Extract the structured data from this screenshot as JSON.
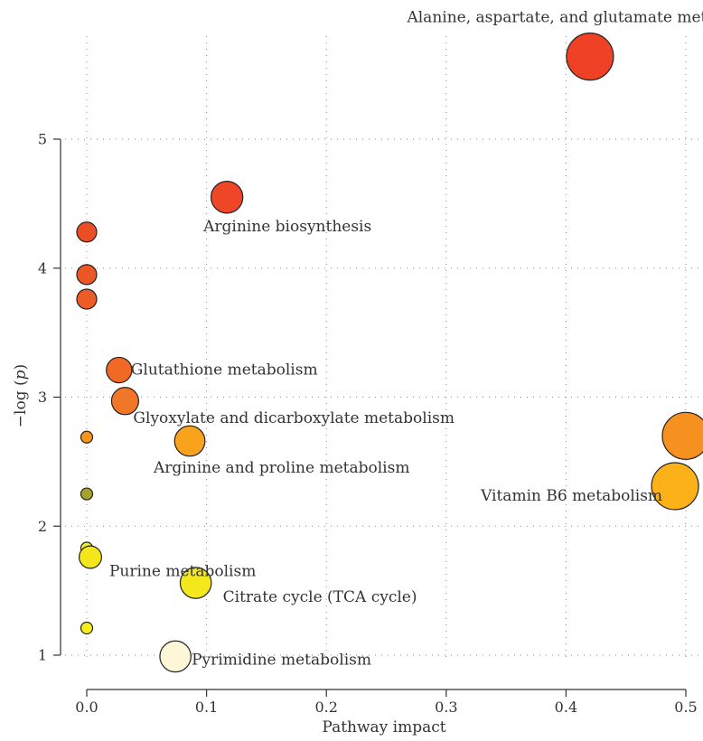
{
  "chart_data": {
    "type": "scatter",
    "xlabel": "Pathway impact",
    "ylabel_prefix": "−log (",
    "ylabel_var": "p",
    "ylabel_suffix": ")",
    "xlim": [
      -0.005,
      0.505
    ],
    "ylim": [
      0.82,
      5.78
    ],
    "x_ticks": [
      0.0,
      0.1,
      0.2,
      0.3,
      0.4,
      0.5
    ],
    "x_tick_labels": [
      "0.0",
      "0.1",
      "0.2",
      "0.3",
      "0.4",
      "0.5"
    ],
    "y_ticks": [
      1,
      2,
      3,
      4,
      5
    ],
    "y_tick_labels": [
      "1",
      "2",
      "3",
      "4",
      "5"
    ],
    "grid": true,
    "points": [
      {
        "x": 0.42,
        "y": 5.64,
        "size": 1.0,
        "color": "#ee4126",
        "label": "Alanine, aspartate, and glutamate metabolism"
      },
      {
        "x": 0.117,
        "y": 4.55,
        "size": 0.62,
        "color": "#ef4628",
        "label": "Arginine biosynthesis"
      },
      {
        "x": 0.0,
        "y": 4.28,
        "size": 0.32,
        "color": "#eb4d24",
        "label": ""
      },
      {
        "x": 0.0,
        "y": 3.95,
        "size": 0.32,
        "color": "#ec5726",
        "label": ""
      },
      {
        "x": 0.0,
        "y": 3.76,
        "size": 0.32,
        "color": "#ed5c27",
        "label": ""
      },
      {
        "x": 0.027,
        "y": 3.21,
        "size": 0.46,
        "color": "#f06a25",
        "label": "Glutathione metabolism"
      },
      {
        "x": 0.032,
        "y": 2.97,
        "size": 0.5,
        "color": "#f27627",
        "label": "Glyoxylate and dicarboxylate metabolism"
      },
      {
        "x": 0.0,
        "y": 2.69,
        "size": 0.3,
        "color": "#f7941d",
        "label": ""
      },
      {
        "x": 0.086,
        "y": 2.66,
        "size": 0.58,
        "color": "#f8a31b",
        "label": "Arginine and proline metabolism"
      },
      {
        "x": 0.5,
        "y": 2.7,
        "size": 1.0,
        "color": "#f6901e",
        "label": ""
      },
      {
        "x": 0.491,
        "y": 2.31,
        "size": 1.0,
        "color": "#fbb117",
        "label": "Vitamin B6 metabolism"
      },
      {
        "x": 0.0,
        "y": 2.25,
        "size": 0.3,
        "color": "#a6a52a",
        "label": ""
      },
      {
        "x": 0.0,
        "y": 1.83,
        "size": 0.3,
        "color": "#f5ec1d",
        "label": ""
      },
      {
        "x": 0.003,
        "y": 1.76,
        "size": 0.38,
        "color": "#f3e61b",
        "label": "Purine metabolism"
      },
      {
        "x": 0.091,
        "y": 1.56,
        "size": 0.6,
        "color": "#f2e81c",
        "label": "Citrate cycle (TCA cycle)"
      },
      {
        "x": 0.0,
        "y": 1.21,
        "size": 0.3,
        "color": "#f7ee1d",
        "label": ""
      },
      {
        "x": 0.074,
        "y": 0.99,
        "size": 0.6,
        "color": "#fdf7d7",
        "label": "Pyrimidine metabolism"
      }
    ]
  }
}
